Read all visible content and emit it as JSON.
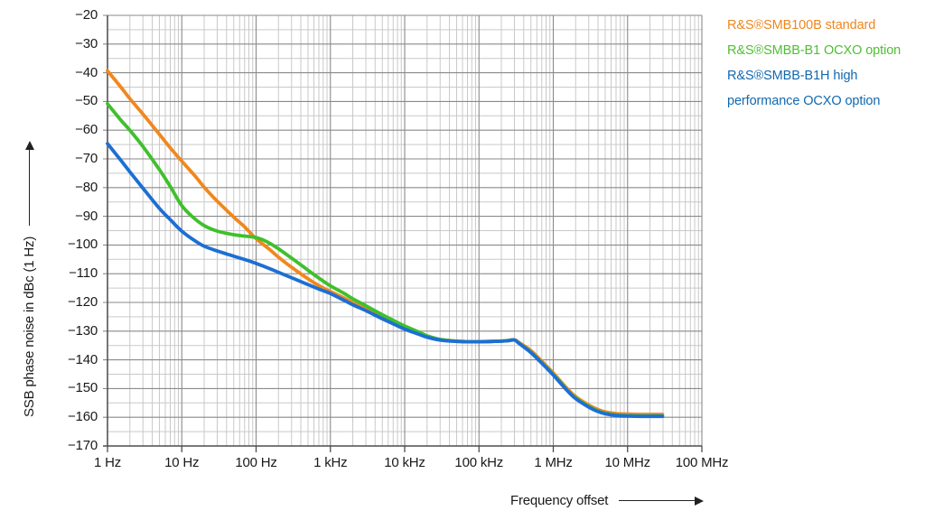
{
  "chart_data": {
    "type": "line",
    "title": "",
    "xlabel": "Frequency offset",
    "ylabel": "SSB phase noise in dBc (1 Hz)",
    "x_scale": "log",
    "x_ticks": [
      "1 Hz",
      "10 Hz",
      "100 Hz",
      "1 kHz",
      "10 kHz",
      "100 kHz",
      "1 MHz",
      "10 MHz",
      "100 MHz"
    ],
    "y_ticks": [
      "−20",
      "−30",
      "−40",
      "−50",
      "−60",
      "−70",
      "−80",
      "−90",
      "−100",
      "−110",
      "−120",
      "−130",
      "−140",
      "−150",
      "−160",
      "−170"
    ],
    "ylim": [
      -170,
      -20
    ],
    "xlim_log10": [
      0,
      8
    ],
    "grid": "on",
    "legend_position": "top-right",
    "style": {
      "grid_major": "#8a8a8a",
      "grid_minor": "#c9c9c9",
      "axis": "#4d4d4d",
      "text": "#1a1a1a"
    },
    "legend_lines": [
      {
        "text": "R&S®SMB100B standard",
        "color": "#EE861E"
      },
      {
        "text": "R&S®SMBB-B1 OCXO option",
        "color": "#4FBE33"
      },
      {
        "text": "R&S®SMBB-B1H high",
        "color": "#1168B0"
      },
      {
        "text": "performance OCXO option",
        "color": "#1168B0"
      }
    ],
    "series": [
      {
        "name": "R&S®SMB100B standard",
        "color": "#F0881E",
        "points_log10Hz_dBc": [
          [
            0,
            -39.3
          ],
          [
            0.18,
            -45
          ],
          [
            0.3,
            -49
          ],
          [
            0.48,
            -54.5
          ],
          [
            0.7,
            -61.5
          ],
          [
            0.85,
            -66.3
          ],
          [
            1,
            -70.8
          ],
          [
            1.18,
            -76
          ],
          [
            1.3,
            -79.8
          ],
          [
            1.48,
            -84.8
          ],
          [
            1.7,
            -90.3
          ],
          [
            1.85,
            -93.8
          ],
          [
            2,
            -97.8
          ],
          [
            2.18,
            -101.5
          ],
          [
            2.3,
            -104.2
          ],
          [
            2.48,
            -107.8
          ],
          [
            2.7,
            -111.8
          ],
          [
            2.85,
            -114.2
          ],
          [
            3,
            -116.2
          ],
          [
            3.18,
            -118.4
          ],
          [
            3.3,
            -120.1
          ],
          [
            3.48,
            -122.4
          ],
          [
            3.7,
            -125.2
          ],
          [
            3.85,
            -127.1
          ],
          [
            4,
            -128.9
          ],
          [
            4.18,
            -130.7
          ],
          [
            4.3,
            -131.9
          ],
          [
            4.48,
            -133
          ],
          [
            4.7,
            -133.5
          ],
          [
            4.85,
            -133.65
          ],
          [
            5,
            -133.65
          ],
          [
            5.18,
            -133.55
          ],
          [
            5.3,
            -133.45
          ],
          [
            5.4,
            -133.2
          ],
          [
            5.48,
            -133
          ],
          [
            5.54,
            -134
          ],
          [
            5.7,
            -136.8
          ],
          [
            5.85,
            -140.6
          ],
          [
            6,
            -144.6
          ],
          [
            6.18,
            -149.8
          ],
          [
            6.3,
            -152.8
          ],
          [
            6.48,
            -155.8
          ],
          [
            6.6,
            -157.3
          ],
          [
            6.7,
            -158.1
          ],
          [
            6.85,
            -158.7
          ],
          [
            7,
            -158.9
          ],
          [
            7.18,
            -159
          ],
          [
            7.3,
            -159
          ],
          [
            7.47,
            -159
          ]
        ]
      },
      {
        "name": "R&S®SMBB-B1 OCXO option",
        "color": "#3FC02C",
        "points_log10Hz_dBc": [
          [
            0,
            -50.8
          ],
          [
            0.18,
            -56.5
          ],
          [
            0.3,
            -60
          ],
          [
            0.48,
            -65.8
          ],
          [
            0.7,
            -73.8
          ],
          [
            0.85,
            -79.8
          ],
          [
            1,
            -86.3
          ],
          [
            1.15,
            -90.3
          ],
          [
            1.3,
            -93.2
          ],
          [
            1.48,
            -95.2
          ],
          [
            1.7,
            -96.4
          ],
          [
            1.85,
            -96.9
          ],
          [
            2,
            -97.4
          ],
          [
            2.15,
            -98.9
          ],
          [
            2.3,
            -101.3
          ],
          [
            2.48,
            -104.6
          ],
          [
            2.7,
            -108.8
          ],
          [
            2.85,
            -111.6
          ],
          [
            3,
            -114.2
          ],
          [
            3.18,
            -116.8
          ],
          [
            3.3,
            -118.7
          ],
          [
            3.48,
            -121.2
          ],
          [
            3.7,
            -124.3
          ],
          [
            3.85,
            -126.3
          ],
          [
            4,
            -128.2
          ],
          [
            4.18,
            -130.2
          ],
          [
            4.3,
            -131.6
          ],
          [
            4.48,
            -132.9
          ],
          [
            4.7,
            -133.5
          ],
          [
            4.85,
            -133.65
          ],
          [
            5,
            -133.7
          ],
          [
            5.18,
            -133.6
          ],
          [
            5.3,
            -133.5
          ],
          [
            5.4,
            -133.3
          ],
          [
            5.48,
            -133.1
          ],
          [
            5.54,
            -134.2
          ],
          [
            5.7,
            -137.3
          ],
          [
            5.85,
            -141.1
          ],
          [
            6,
            -145.1
          ],
          [
            6.18,
            -150.3
          ],
          [
            6.3,
            -153.3
          ],
          [
            6.48,
            -156.3
          ],
          [
            6.6,
            -157.8
          ],
          [
            6.7,
            -158.6
          ],
          [
            6.85,
            -159.2
          ],
          [
            7,
            -159.4
          ],
          [
            7.18,
            -159.5
          ],
          [
            7.3,
            -159.5
          ],
          [
            7.47,
            -159.5
          ]
        ]
      },
      {
        "name": "R&S®SMBB-B1H high performance OCXO option",
        "color": "#1C6FD4",
        "points_log10Hz_dBc": [
          [
            0,
            -64.7
          ],
          [
            0.18,
            -70.5
          ],
          [
            0.3,
            -74.5
          ],
          [
            0.48,
            -80.3
          ],
          [
            0.7,
            -87.3
          ],
          [
            0.85,
            -91.3
          ],
          [
            1,
            -95.2
          ],
          [
            1.18,
            -98.6
          ],
          [
            1.3,
            -100.4
          ],
          [
            1.48,
            -102.1
          ],
          [
            1.7,
            -103.9
          ],
          [
            1.85,
            -105.1
          ],
          [
            2,
            -106.4
          ],
          [
            2.18,
            -108.2
          ],
          [
            2.3,
            -109.5
          ],
          [
            2.48,
            -111.4
          ],
          [
            2.7,
            -113.8
          ],
          [
            2.85,
            -115.4
          ],
          [
            3,
            -116.9
          ],
          [
            3.18,
            -119.2
          ],
          [
            3.3,
            -120.8
          ],
          [
            3.48,
            -122.9
          ],
          [
            3.7,
            -125.7
          ],
          [
            3.85,
            -127.5
          ],
          [
            4,
            -129.3
          ],
          [
            4.18,
            -131
          ],
          [
            4.3,
            -132.1
          ],
          [
            4.48,
            -133.1
          ],
          [
            4.7,
            -133.6
          ],
          [
            4.85,
            -133.7
          ],
          [
            5,
            -133.7
          ],
          [
            5.18,
            -133.6
          ],
          [
            5.3,
            -133.5
          ],
          [
            5.4,
            -133.3
          ],
          [
            5.48,
            -133.1
          ],
          [
            5.54,
            -134.3
          ],
          [
            5.7,
            -137.5
          ],
          [
            5.85,
            -141.3
          ],
          [
            6,
            -145.3
          ],
          [
            6.18,
            -150.5
          ],
          [
            6.3,
            -153.5
          ],
          [
            6.48,
            -156.5
          ],
          [
            6.6,
            -158
          ],
          [
            6.7,
            -158.8
          ],
          [
            6.85,
            -159.4
          ],
          [
            7,
            -159.6
          ],
          [
            7.18,
            -159.7
          ],
          [
            7.3,
            -159.7
          ],
          [
            7.47,
            -159.7
          ]
        ]
      }
    ]
  }
}
